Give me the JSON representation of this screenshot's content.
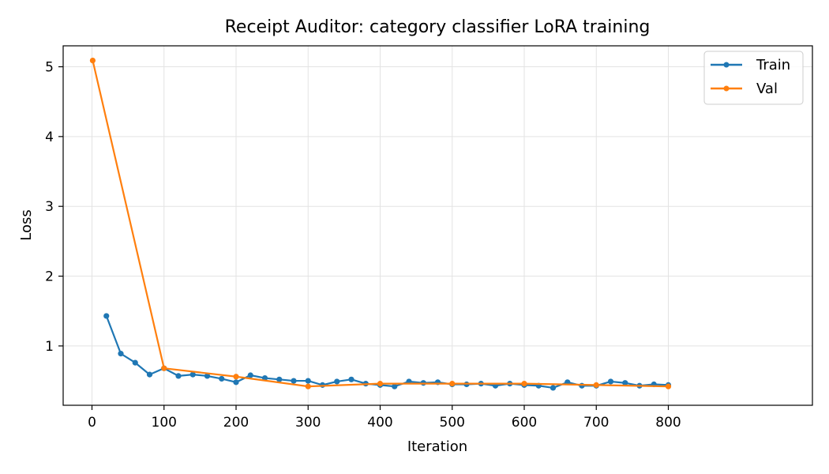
{
  "chart_data": {
    "type": "line",
    "title": "Receipt Auditor: category classifier LoRA training",
    "xlabel": "Iteration",
    "ylabel": "Loss",
    "xlim": [
      -40,
      1000
    ],
    "ylim": [
      0.15,
      5.3
    ],
    "xticks": [
      0,
      100,
      200,
      300,
      400,
      500,
      600,
      700,
      800
    ],
    "yticks": [
      1,
      2,
      3,
      4,
      5
    ],
    "grid": true,
    "legend_position": "top-right",
    "series": [
      {
        "name": "Train",
        "color": "#1f77b4",
        "x": [
          20,
          40,
          60,
          80,
          100,
          120,
          140,
          160,
          180,
          200,
          220,
          240,
          260,
          280,
          300,
          320,
          340,
          360,
          380,
          400,
          420,
          440,
          460,
          480,
          500,
          520,
          540,
          560,
          580,
          600,
          620,
          640,
          660,
          680,
          700,
          720,
          740,
          760,
          780,
          800
        ],
        "values": [
          1.43,
          0.89,
          0.76,
          0.59,
          0.68,
          0.57,
          0.59,
          0.57,
          0.53,
          0.48,
          0.58,
          0.54,
          0.52,
          0.5,
          0.5,
          0.44,
          0.49,
          0.52,
          0.46,
          0.44,
          0.42,
          0.49,
          0.47,
          0.48,
          0.45,
          0.45,
          0.46,
          0.43,
          0.46,
          0.44,
          0.43,
          0.4,
          0.48,
          0.43,
          0.43,
          0.49,
          0.47,
          0.43,
          0.45,
          0.44
        ]
      },
      {
        "name": "Val",
        "color": "#ff7f0e",
        "x": [
          1,
          100,
          200,
          300,
          400,
          500,
          600,
          700,
          800
        ],
        "values": [
          5.09,
          0.68,
          0.56,
          0.42,
          0.46,
          0.46,
          0.46,
          0.44,
          0.42
        ]
      }
    ]
  }
}
